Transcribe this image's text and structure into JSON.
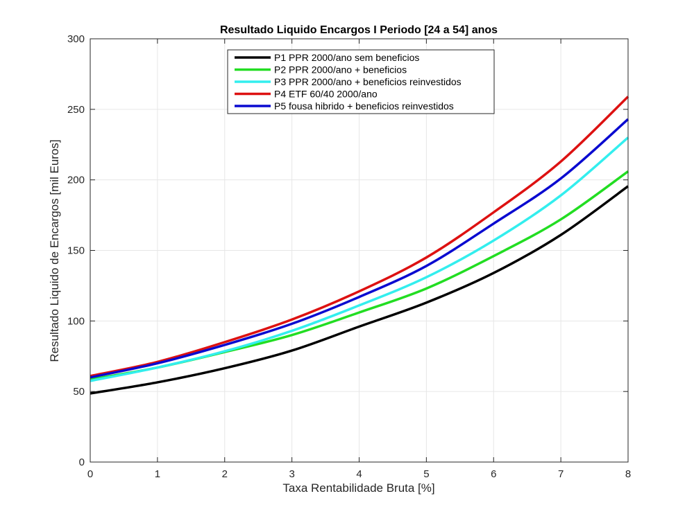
{
  "chart_data": {
    "type": "line",
    "title": "Resultado Liquido Encargos I Periodo [24 a 54] anos",
    "xlabel": "Taxa Rentabilidade Bruta [%]",
    "ylabel": "Resultado Liquido de Encargos [mil Euros]",
    "xlim": [
      0,
      8
    ],
    "ylim": [
      0,
      300
    ],
    "xticks": [
      "0",
      "1",
      "2",
      "3",
      "4",
      "5",
      "6",
      "7",
      "8"
    ],
    "yticks": [
      "0",
      "50",
      "100",
      "150",
      "200",
      "250",
      "300"
    ],
    "grid": true,
    "legend_position": "top-center",
    "x": [
      0,
      1,
      2,
      3,
      4,
      5,
      6,
      7,
      8
    ],
    "series": [
      {
        "name": "P1 PPR 2000/ano sem beneficios",
        "color": "#000000",
        "values": [
          48.6,
          56.5,
          66.5,
          79,
          96,
          113,
          134,
          161,
          195.5
        ]
      },
      {
        "name": "P2 PPR 2000/ano + beneficios",
        "color": "#22dd22",
        "values": [
          58.5,
          67,
          78,
          90,
          106,
          123,
          146,
          172,
          206
        ]
      },
      {
        "name": "P3 PPR 2000/ano + beneficios reinvestidos",
        "color": "#33eeee",
        "values": [
          57.5,
          67,
          78.5,
          93,
          111,
          131,
          157,
          189,
          230
        ]
      },
      {
        "name": "P4 ETF 60/40 2000/ano",
        "color": "#dd1111",
        "values": [
          61,
          71,
          85,
          101,
          121,
          145,
          177,
          213,
          259
        ]
      },
      {
        "name": "P5 fousa hibrido + beneficios reinvestidos",
        "color": "#0a0ad0",
        "values": [
          60,
          70,
          83,
          98,
          117,
          139,
          169,
          201,
          243
        ]
      }
    ]
  }
}
